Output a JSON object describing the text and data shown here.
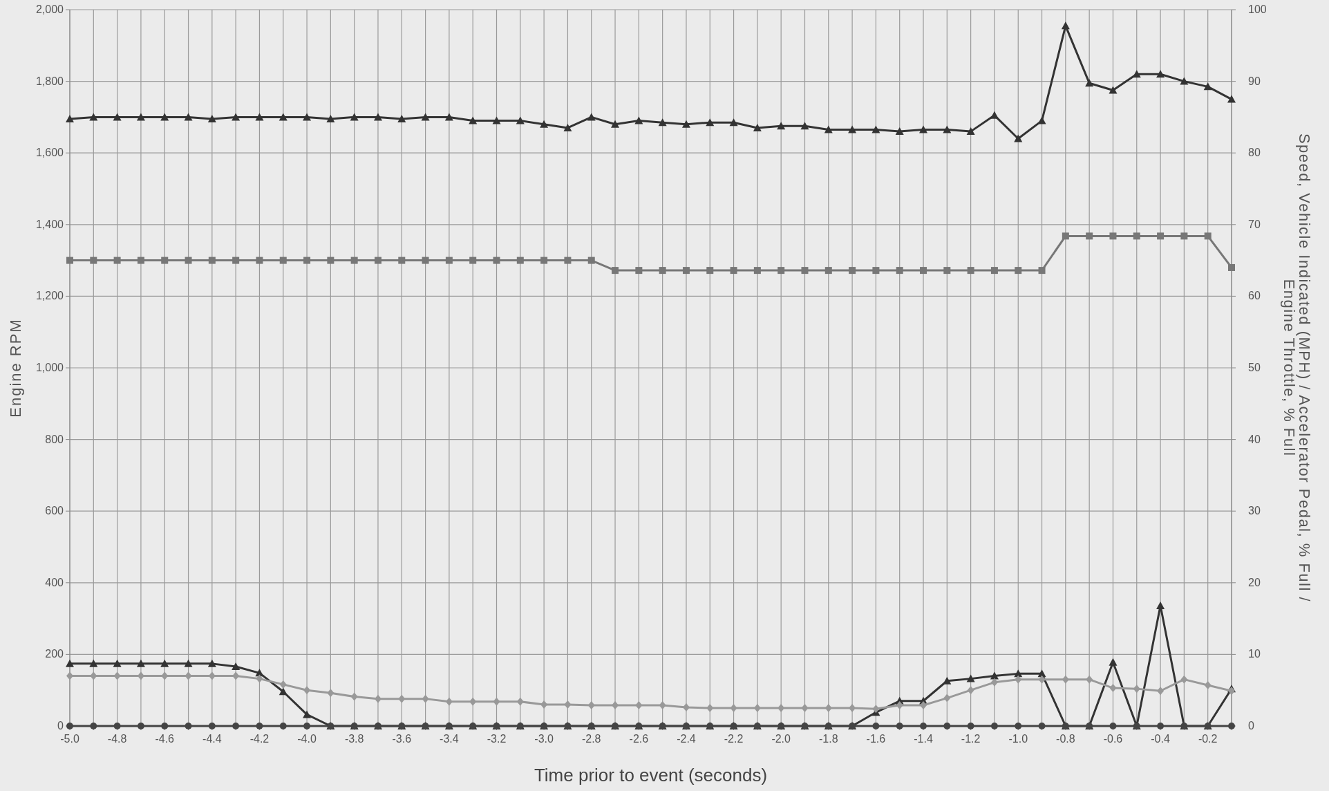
{
  "chart_data": {
    "type": "line",
    "xlabel": "Time prior to event (seconds)",
    "ylabel": "Engine RPM",
    "y2label": "Speed, Vehicle Indicated (MPH) / Accelerator Pedal, % Full / Engine Throttle, % Full",
    "x": [
      -5.0,
      -4.9,
      -4.8,
      -4.7,
      -4.6,
      -4.5,
      -4.4,
      -4.3,
      -4.2,
      -4.1,
      -4.0,
      -3.9,
      -3.8,
      -3.7,
      -3.6,
      -3.5,
      -3.4,
      -3.3,
      -3.2,
      -3.1,
      -3.0,
      -2.9,
      -2.8,
      -2.7,
      -2.6,
      -2.5,
      -2.4,
      -2.3,
      -2.2,
      -2.1,
      -2.0,
      -1.9,
      -1.8,
      -1.7,
      -1.6,
      -1.5,
      -1.4,
      -1.3,
      -1.2,
      -1.1,
      -1.0,
      -0.9,
      -0.8,
      -0.7,
      -0.6,
      -0.5,
      -0.4,
      -0.3,
      -0.2,
      -0.1
    ],
    "series": [
      {
        "color": "#333333",
        "marker": "triangle",
        "values": [
          1695,
          1700,
          1700,
          1700,
          1700,
          1700,
          1695,
          1700,
          1700,
          1700,
          1700,
          1695,
          1700,
          1700,
          1695,
          1700,
          1700,
          1690,
          1690,
          1690,
          1680,
          1670,
          1700,
          1680,
          1690,
          1685,
          1680,
          1685,
          1685,
          1670,
          1675,
          1675,
          1665,
          1665,
          1665,
          1660,
          1665,
          1665,
          1660,
          1705,
          1640,
          1690,
          1955,
          1795,
          1775,
          1820,
          1820,
          1800,
          1785,
          1750
        ]
      },
      {
        "color": "#777777",
        "marker": "square",
        "axis": "y2",
        "values": [
          65,
          65,
          65,
          65,
          65,
          65,
          65,
          65,
          65,
          65,
          65,
          65,
          65,
          65,
          65,
          65,
          65,
          65,
          65,
          65,
          65,
          65,
          65,
          63.6,
          63.6,
          63.6,
          63.6,
          63.6,
          63.6,
          63.6,
          63.6,
          63.6,
          63.6,
          63.6,
          63.6,
          63.6,
          63.6,
          63.6,
          63.6,
          63.6,
          63.6,
          63.6,
          68.4,
          68.4,
          68.4,
          68.4,
          68.4,
          68.4,
          68.4,
          64
        ]
      },
      {
        "color": "#333333",
        "marker": "triangle",
        "axis": "y2",
        "values": [
          8.7,
          8.7,
          8.7,
          8.7,
          8.7,
          8.7,
          8.7,
          8.3,
          7.4,
          4.8,
          1.6,
          0,
          0,
          0,
          0,
          0,
          0,
          0,
          0,
          0,
          0,
          0,
          0,
          0,
          0,
          0,
          0,
          0,
          0,
          0,
          0,
          0,
          0,
          0,
          1.9,
          3.5,
          3.5,
          6.3,
          6.6,
          7.0,
          7.3,
          7.3,
          0,
          0,
          8.9,
          0,
          16.8,
          0,
          0,
          5.2
        ]
      },
      {
        "color": "#999999",
        "marker": "diamond",
        "axis": "y2",
        "values": [
          7.0,
          7.0,
          7.0,
          7.0,
          7.0,
          7.0,
          7.0,
          7.0,
          6.6,
          5.8,
          5.0,
          4.6,
          4.1,
          3.8,
          3.8,
          3.8,
          3.4,
          3.4,
          3.4,
          3.4,
          3.0,
          3.0,
          2.9,
          2.9,
          2.9,
          2.9,
          2.6,
          2.5,
          2.5,
          2.5,
          2.5,
          2.5,
          2.5,
          2.5,
          2.4,
          2.9,
          2.9,
          3.9,
          5.0,
          6.1,
          6.5,
          6.5,
          6.5,
          6.5,
          5.3,
          5.2,
          4.9,
          6.5,
          5.7,
          4.9
        ]
      },
      {
        "color": "#444444",
        "marker": "circle",
        "axis": "y2",
        "values": [
          0,
          0,
          0,
          0,
          0,
          0,
          0,
          0,
          0,
          0,
          0,
          0,
          0,
          0,
          0,
          0,
          0,
          0,
          0,
          0,
          0,
          0,
          0,
          0,
          0,
          0,
          0,
          0,
          0,
          0,
          0,
          0,
          0,
          0,
          0,
          0,
          0,
          0,
          0,
          0,
          0,
          0,
          0,
          0,
          0,
          0,
          0,
          0,
          0,
          0
        ]
      }
    ],
    "xlim": [
      -5.0,
      -0.1
    ],
    "xticks": [
      {
        "value": -5.0,
        "label": "-5.0"
      },
      {
        "value": -4.9,
        "label": null
      },
      {
        "value": -4.8,
        "label": "-4.8"
      },
      {
        "value": -4.7,
        "label": null
      },
      {
        "value": -4.6,
        "label": "-4.6"
      },
      {
        "value": -4.5,
        "label": null
      },
      {
        "value": -4.4,
        "label": "-4.4"
      },
      {
        "value": -4.3,
        "label": null
      },
      {
        "value": -4.2,
        "label": "-4.2"
      },
      {
        "value": -4.1,
        "label": null
      },
      {
        "value": -4.0,
        "label": "-4.0"
      },
      {
        "value": -3.9,
        "label": null
      },
      {
        "value": -3.8,
        "label": "-3.8"
      },
      {
        "value": -3.7,
        "label": null
      },
      {
        "value": -3.6,
        "label": "-3.6"
      },
      {
        "value": -3.5,
        "label": null
      },
      {
        "value": -3.4,
        "label": "-3.4"
      },
      {
        "value": -3.3,
        "label": null
      },
      {
        "value": -3.2,
        "label": "-3.2"
      },
      {
        "value": -3.1,
        "label": null
      },
      {
        "value": -3.0,
        "label": "-3.0"
      },
      {
        "value": -2.9,
        "label": null
      },
      {
        "value": -2.8,
        "label": "-2.8"
      },
      {
        "value": -2.7,
        "label": null
      },
      {
        "value": -2.6,
        "label": "-2.6"
      },
      {
        "value": -2.5,
        "label": null
      },
      {
        "value": -2.4,
        "label": "-2.4"
      },
      {
        "value": -2.3,
        "label": null
      },
      {
        "value": -2.2,
        "label": "-2.2"
      },
      {
        "value": -2.1,
        "label": null
      },
      {
        "value": -2.0,
        "label": "-2.0"
      },
      {
        "value": -1.9,
        "label": null
      },
      {
        "value": -1.8,
        "label": "-1.8"
      },
      {
        "value": -1.7,
        "label": null
      },
      {
        "value": -1.6,
        "label": "-1.6"
      },
      {
        "value": -1.5,
        "label": null
      },
      {
        "value": -1.4,
        "label": "-1.4"
      },
      {
        "value": -1.3,
        "label": null
      },
      {
        "value": -1.2,
        "label": "-1.2"
      },
      {
        "value": -1.1,
        "label": null
      },
      {
        "value": -1.0,
        "label": "-1.0"
      },
      {
        "value": -0.9,
        "label": null
      },
      {
        "value": -0.8,
        "label": "-0.8"
      },
      {
        "value": -0.7,
        "label": null
      },
      {
        "value": -0.6,
        "label": "-0.6"
      },
      {
        "value": -0.5,
        "label": null
      },
      {
        "value": -0.4,
        "label": "-0.4"
      },
      {
        "value": -0.3,
        "label": null
      },
      {
        "value": -0.2,
        "label": "-0.2"
      },
      {
        "value": -0.1,
        "label": null
      }
    ],
    "ylim": [
      0,
      2000
    ],
    "yticks": [
      0,
      200,
      400,
      600,
      800,
      {
        "value": 1000,
        "label": "1,000"
      },
      {
        "value": 1200,
        "label": "1,200"
      },
      {
        "value": 1400,
        "label": "1,400"
      },
      {
        "value": 1600,
        "label": "1,600"
      },
      {
        "value": 1800,
        "label": "1,800"
      },
      {
        "value": 2000,
        "label": "2,000"
      }
    ],
    "y2lim": [
      0,
      100
    ],
    "y2ticks": [
      0,
      10,
      20,
      30,
      40,
      50,
      60,
      70,
      80,
      90,
      100
    ],
    "grid": true,
    "line_style": "solid"
  }
}
